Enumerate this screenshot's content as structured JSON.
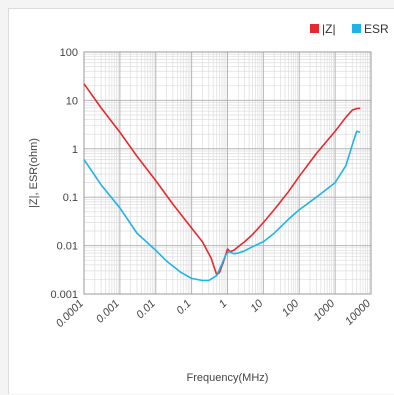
{
  "chart_data": {
    "type": "line",
    "xlabel": "Frequency(MHz)",
    "ylabel": "|Z|, ESR(ohm)",
    "xscale": "log",
    "yscale": "log",
    "xlim": [
      0.0001,
      10000
    ],
    "ylim": [
      0.001,
      100
    ],
    "grid": true,
    "legend_position": "top-right",
    "x_tick_labels": [
      "0.0001",
      "0.001",
      "0.01",
      "0.1",
      "1",
      "10",
      "100",
      "1000",
      "10000"
    ],
    "y_tick_labels": [
      "0.001",
      "0.01",
      "0.1",
      "1",
      "10",
      "100"
    ],
    "series": [
      {
        "name": "|Z|",
        "color": "#e8282e",
        "points": [
          [
            0.0001,
            22
          ],
          [
            0.0003,
            7
          ],
          [
            0.001,
            2.2
          ],
          [
            0.003,
            0.7
          ],
          [
            0.01,
            0.22
          ],
          [
            0.03,
            0.072
          ],
          [
            0.1,
            0.023
          ],
          [
            0.2,
            0.012
          ],
          [
            0.35,
            0.0055
          ],
          [
            0.5,
            0.0025
          ],
          [
            0.6,
            0.0028
          ],
          [
            0.8,
            0.005
          ],
          [
            1.0,
            0.0085
          ],
          [
            1.2,
            0.0075
          ],
          [
            1.5,
            0.008
          ],
          [
            2,
            0.0095
          ],
          [
            3,
            0.012
          ],
          [
            5,
            0.017
          ],
          [
            10,
            0.03
          ],
          [
            20,
            0.055
          ],
          [
            50,
            0.13
          ],
          [
            100,
            0.27
          ],
          [
            300,
            0.8
          ],
          [
            1000,
            2.3
          ],
          [
            2000,
            4.5
          ],
          [
            3000,
            6.3
          ],
          [
            4000,
            6.8
          ],
          [
            5000,
            6.9
          ]
        ]
      },
      {
        "name": "ESR",
        "color": "#1fb3e8",
        "points": [
          [
            0.0001,
            0.6
          ],
          [
            0.0003,
            0.18
          ],
          [
            0.001,
            0.06
          ],
          [
            0.003,
            0.018
          ],
          [
            0.01,
            0.008
          ],
          [
            0.02,
            0.0048
          ],
          [
            0.05,
            0.0028
          ],
          [
            0.1,
            0.0021
          ],
          [
            0.2,
            0.0019
          ],
          [
            0.3,
            0.0019
          ],
          [
            0.5,
            0.0024
          ],
          [
            0.7,
            0.0042
          ],
          [
            0.9,
            0.0065
          ],
          [
            1.1,
            0.0075
          ],
          [
            1.5,
            0.0068
          ],
          [
            2,
            0.007
          ],
          [
            3,
            0.0078
          ],
          [
            5,
            0.0095
          ],
          [
            10,
            0.012
          ],
          [
            20,
            0.018
          ],
          [
            50,
            0.035
          ],
          [
            100,
            0.055
          ],
          [
            300,
            0.1
          ],
          [
            1000,
            0.2
          ],
          [
            2000,
            0.45
          ],
          [
            3000,
            1.2
          ],
          [
            4000,
            2.3
          ],
          [
            5000,
            2.2
          ]
        ]
      }
    ]
  }
}
